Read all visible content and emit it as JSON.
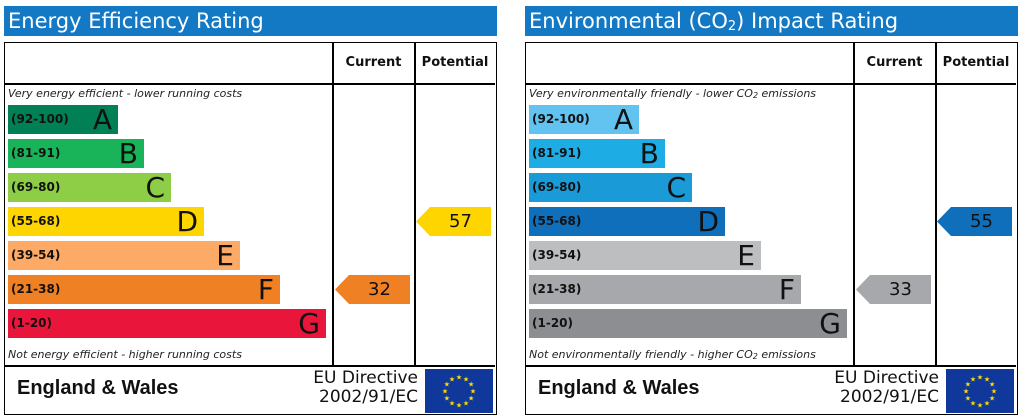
{
  "chart_data": [
    {
      "type": "bar",
      "title": "Energy Efficiency Rating",
      "columns": [
        "Current",
        "Potential"
      ],
      "top_note": "Very energy efficient - lower running costs",
      "bottom_note": "Not energy efficient - higher running costs",
      "bands": [
        {
          "range": "(92-100)",
          "letter": "A",
          "color": "#008054"
        },
        {
          "range": "(81-91)",
          "letter": "B",
          "color": "#19b459"
        },
        {
          "range": "(69-80)",
          "letter": "C",
          "color": "#8dce46"
        },
        {
          "range": "(55-68)",
          "letter": "D",
          "color": "#ffd500"
        },
        {
          "range": "(39-54)",
          "letter": "E",
          "color": "#fcaa65"
        },
        {
          "range": "(21-38)",
          "letter": "F",
          "color": "#ef8023"
        },
        {
          "range": "(1-20)",
          "letter": "G",
          "color": "#e9153b"
        }
      ],
      "current": {
        "value": 32,
        "band": "F",
        "color": "#ef8023"
      },
      "potential": {
        "value": 57,
        "band": "D",
        "color": "#ffd500"
      }
    },
    {
      "type": "bar",
      "title": "Environmental (CO2) Impact Rating",
      "title_parts": [
        "Environmental (CO",
        "2",
        ") Impact Rating"
      ],
      "columns": [
        "Current",
        "Potential"
      ],
      "top_note": "Very environmentally friendly - lower CO2 emissions",
      "top_note_parts": [
        "Very environmentally friendly - lower CO",
        "2",
        " emissions"
      ],
      "bottom_note": "Not environmentally friendly - higher CO2 emissions",
      "bottom_note_parts": [
        "Not environmentally friendly - higher CO",
        "2",
        " emissions"
      ],
      "bands": [
        {
          "range": "(92-100)",
          "letter": "A",
          "color": "#63c3f0"
        },
        {
          "range": "(81-91)",
          "letter": "B",
          "color": "#1eace4"
        },
        {
          "range": "(69-80)",
          "letter": "C",
          "color": "#1a9ad7"
        },
        {
          "range": "(55-68)",
          "letter": "D",
          "color": "#0f6fba"
        },
        {
          "range": "(39-54)",
          "letter": "E",
          "color": "#bcbec0"
        },
        {
          "range": "(21-38)",
          "letter": "F",
          "color": "#a6a8ab"
        },
        {
          "range": "(1-20)",
          "letter": "G",
          "color": "#8c8e91"
        }
      ],
      "current": {
        "value": 33,
        "band": "F",
        "color": "#a6a8ab"
      },
      "potential": {
        "value": 55,
        "band": "D",
        "color": "#0f6fba"
      }
    }
  ],
  "footer": {
    "country": "England & Wales",
    "directive_line1": "EU Directive",
    "directive_line2": "2002/91/EC"
  }
}
